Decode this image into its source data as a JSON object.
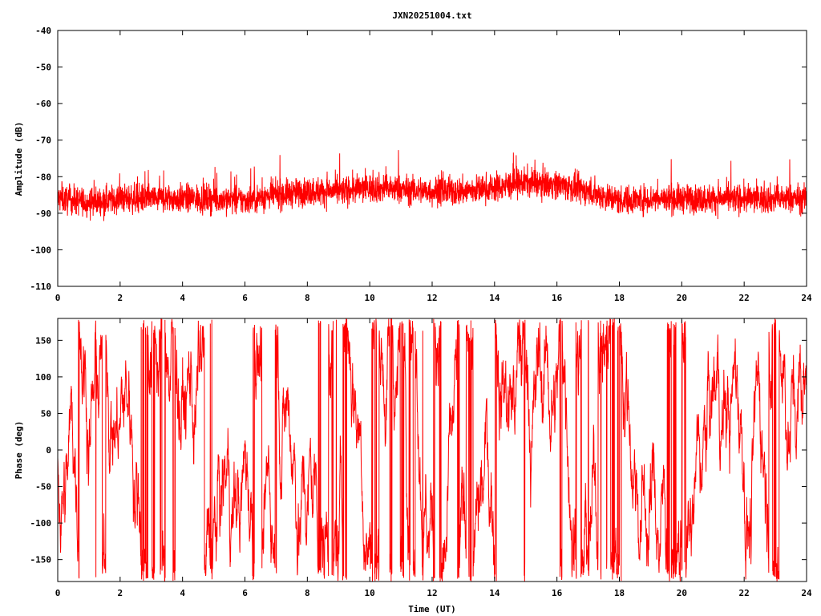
{
  "chart_data": [
    {
      "type": "line",
      "title": "JXN20251004.txt",
      "xlabel": "",
      "ylabel": "Amplitude (dB)",
      "xlim": [
        0,
        24
      ],
      "ylim": [
        -110,
        -40
      ],
      "xticks": [
        "0",
        "2",
        "4",
        "6",
        "8",
        "10",
        "12",
        "14",
        "16",
        "18",
        "20",
        "22",
        "24"
      ],
      "yticks": [
        "-40",
        "-50",
        "-60",
        "-70",
        "-80",
        "-90",
        "-100",
        "-110"
      ],
      "color": "#ff0000",
      "hourly_mean_db": [
        -86,
        -87,
        -86,
        -86,
        -86,
        -86,
        -86.5,
        -85,
        -84,
        -84,
        -83,
        -83.5,
        -84,
        -84,
        -83,
        -81.5,
        -82,
        -84,
        -86.5,
        -86,
        -86,
        -86,
        -86,
        -86,
        -86
      ],
      "noise_halfwidth_db": 4,
      "samples": 4000
    },
    {
      "type": "line",
      "title": "",
      "xlabel": "Time (UT)",
      "ylabel": "Phase (deg)",
      "xlim": [
        0,
        24
      ],
      "ylim": [
        -180,
        180
      ],
      "xticks": [
        "0",
        "2",
        "4",
        "6",
        "8",
        "10",
        "12",
        "14",
        "16",
        "18",
        "20",
        "22",
        "24"
      ],
      "yticks": [
        "150",
        "100",
        "50",
        "0",
        "-50",
        "-100",
        "-150"
      ],
      "color": "#ff0000",
      "wrapped": true,
      "samples": 4000
    }
  ]
}
